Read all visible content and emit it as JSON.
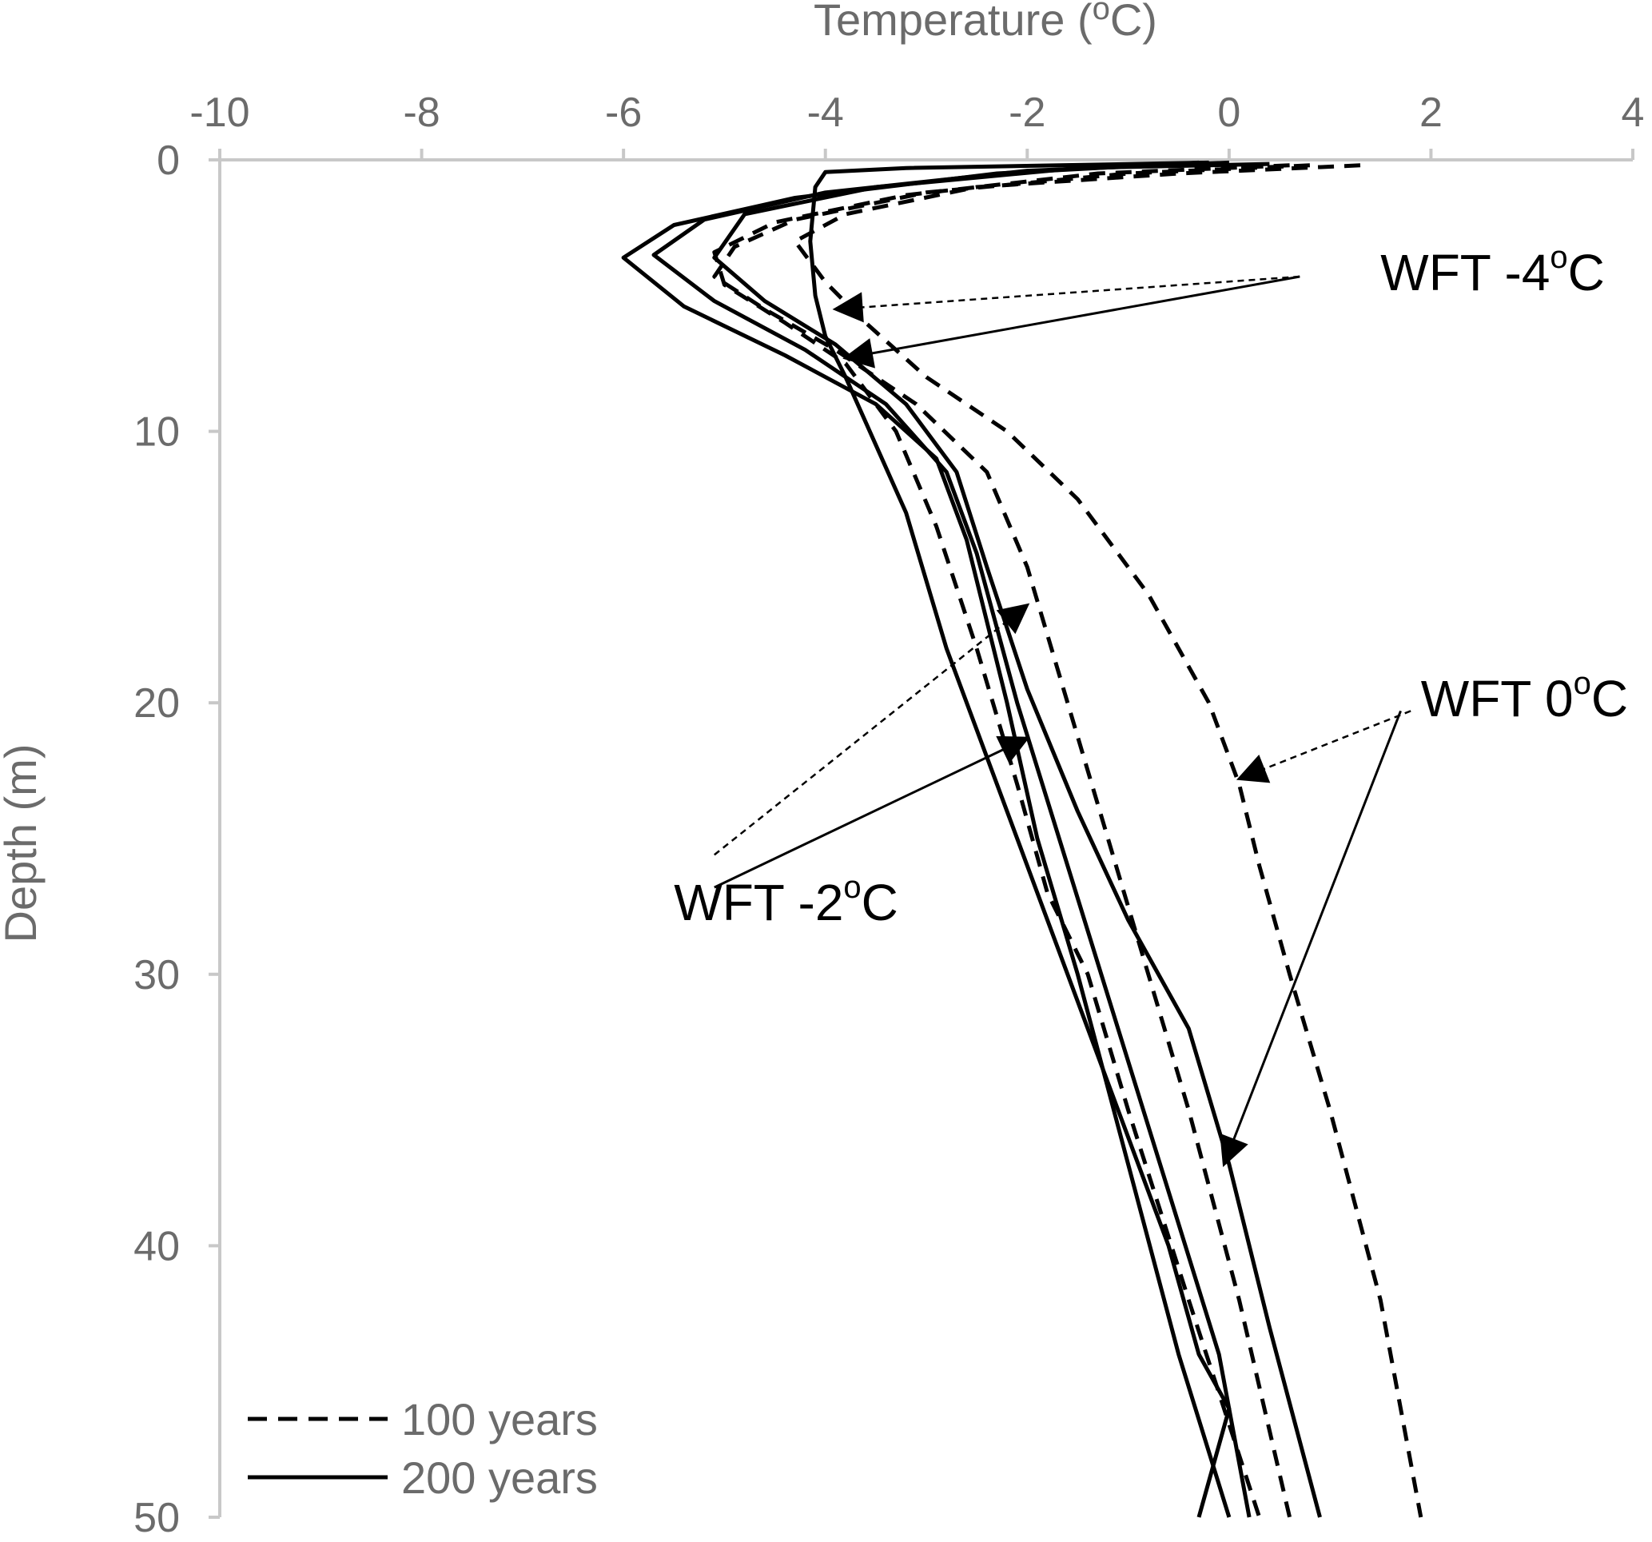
{
  "chart_data": {
    "type": "line",
    "xlabel": {
      "prefix": "Temperature (",
      "sup": "o",
      "suffix": "C)"
    },
    "ylabel": "Depth (m)",
    "xlim": [
      -10,
      4
    ],
    "ylim": [
      0,
      50
    ],
    "x_axis_position": "top",
    "y_axis_inverted": true,
    "grid": false,
    "x_ticks": [
      -10,
      -8,
      -6,
      -4,
      -2,
      0,
      2,
      4
    ],
    "y_ticks": [
      0,
      10,
      20,
      30,
      40,
      50
    ],
    "legend": {
      "placement": "bottom-left",
      "entries": [
        {
          "label": "100 years",
          "style": "dashed"
        },
        {
          "label": "200 years",
          "style": "solid"
        }
      ]
    },
    "series": [
      {
        "style": "dashed",
        "points": [
          [
            1.3,
            0.2
          ],
          [
            -0.5,
            0.5
          ],
          [
            -2.5,
            1
          ],
          [
            -3.8,
            2
          ],
          [
            -4.3,
            3
          ],
          [
            -4.0,
            4.5
          ],
          [
            -3.6,
            6
          ],
          [
            -3.0,
            8
          ],
          [
            -2.2,
            10
          ],
          [
            -1.5,
            12.5
          ],
          [
            -0.8,
            16
          ],
          [
            -0.2,
            20
          ],
          [
            0.1,
            23
          ],
          [
            0.3,
            26
          ],
          [
            0.6,
            30
          ],
          [
            1.0,
            35
          ],
          [
            1.5,
            42
          ],
          [
            1.9,
            50
          ]
        ]
      },
      {
        "style": "dashed",
        "points": [
          [
            0.8,
            0.2
          ],
          [
            -1.0,
            0.5
          ],
          [
            -3.0,
            1.2
          ],
          [
            -4.3,
            2.2
          ],
          [
            -4.9,
            3.2
          ],
          [
            -5.1,
            4.3
          ],
          [
            -4.6,
            5.5
          ],
          [
            -3.9,
            7
          ],
          [
            -3.1,
            9
          ],
          [
            -2.4,
            11.5
          ],
          [
            -2.0,
            15
          ],
          [
            -1.6,
            20
          ],
          [
            -1.2,
            25
          ],
          [
            -0.8,
            30
          ],
          [
            -0.4,
            35
          ],
          [
            0.1,
            42
          ],
          [
            0.6,
            50
          ]
        ]
      },
      {
        "style": "dashed",
        "points": [
          [
            0.6,
            0.2
          ],
          [
            -1.3,
            0.5
          ],
          [
            -3.2,
            1.3
          ],
          [
            -4.5,
            2.3
          ],
          [
            -5.1,
            3.4
          ],
          [
            -5.0,
            4.6
          ],
          [
            -4.4,
            6
          ],
          [
            -3.8,
            7.5
          ],
          [
            -3.3,
            10
          ],
          [
            -2.9,
            13.5
          ],
          [
            -2.5,
            18
          ],
          [
            -2.1,
            23
          ],
          [
            -1.8,
            27
          ],
          [
            -1.4,
            30
          ],
          [
            -1.0,
            35
          ],
          [
            -0.4,
            42
          ],
          [
            0.3,
            50
          ]
        ]
      },
      {
        "style": "solid",
        "points": [
          [
            0.4,
            0.15
          ],
          [
            -1.5,
            0.3
          ],
          [
            -3.5,
            1
          ],
          [
            -4.8,
            2
          ],
          [
            -5.1,
            3.6
          ],
          [
            -4.6,
            5.2
          ],
          [
            -3.9,
            6.8
          ],
          [
            -3.2,
            9
          ],
          [
            -2.7,
            11.5
          ],
          [
            -2.4,
            15
          ],
          [
            -2.0,
            19.5
          ],
          [
            -1.5,
            24
          ],
          [
            -1.0,
            28
          ],
          [
            -0.4,
            32
          ],
          [
            0.0,
            37
          ],
          [
            0.4,
            43
          ],
          [
            0.9,
            50
          ]
        ]
      },
      {
        "style": "solid",
        "points": [
          [
            0.0,
            0.1
          ],
          [
            -2.0,
            0.4
          ],
          [
            -4.0,
            1.2
          ],
          [
            -5.2,
            2.2
          ],
          [
            -5.7,
            3.5
          ],
          [
            -5.1,
            5.2
          ],
          [
            -4.2,
            7
          ],
          [
            -3.4,
            9
          ],
          [
            -2.8,
            11.5
          ],
          [
            -2.5,
            14.5
          ],
          [
            -2.1,
            20
          ],
          [
            -1.6,
            26
          ],
          [
            -1.1,
            32
          ],
          [
            -0.6,
            38
          ],
          [
            -0.1,
            44
          ],
          [
            0.2,
            50
          ]
        ]
      },
      {
        "style": "solid",
        "points": [
          [
            -0.3,
            0.1
          ],
          [
            -2.3,
            0.5
          ],
          [
            -4.3,
            1.4
          ],
          [
            -5.5,
            2.4
          ],
          [
            -6.0,
            3.6
          ],
          [
            -5.4,
            5.4
          ],
          [
            -4.4,
            7.2
          ],
          [
            -3.5,
            9
          ],
          [
            -2.9,
            11
          ],
          [
            -2.6,
            14
          ],
          [
            -2.2,
            20
          ],
          [
            -1.9,
            25
          ],
          [
            -1.5,
            30
          ],
          [
            -1.0,
            37
          ],
          [
            -0.5,
            44
          ],
          [
            0.0,
            50
          ]
        ]
      },
      {
        "style": "solid",
        "points": [
          [
            -0.2,
            0.1
          ],
          [
            -3.2,
            0.3
          ],
          [
            -4.0,
            0.45
          ],
          [
            -4.1,
            1
          ],
          [
            -4.15,
            3
          ],
          [
            -4.1,
            5
          ],
          [
            -4.0,
            6.5
          ],
          [
            -3.8,
            8
          ],
          [
            -3.2,
            13
          ],
          [
            -2.8,
            18
          ],
          [
            -2.4,
            22
          ],
          [
            -2.1,
            25
          ],
          [
            -1.8,
            28
          ],
          [
            -1.2,
            34
          ],
          [
            -0.6,
            40
          ],
          [
            -0.3,
            44
          ],
          [
            0.0,
            46
          ],
          [
            -0.3,
            50
          ]
        ]
      }
    ],
    "annotations": [
      {
        "label": "WFT  -4",
        "sup": "o",
        "suffix": "C",
        "label_at": [
          1.5,
          4.8
        ],
        "arrows": [
          {
            "style": "dashed",
            "from": [
              0.7,
              4.3
            ],
            "to": [
              -3.9,
              5.5
            ]
          },
          {
            "style": "solid",
            "from": [
              0.7,
              4.3
            ],
            "to": [
              -3.8,
              7.3
            ]
          }
        ]
      },
      {
        "label": "WFT  -2",
        "sup": "o",
        "suffix": "C",
        "label_at": [
          -5.5,
          28
        ],
        "arrows": [
          {
            "style": "dashed",
            "from": [
              -5.1,
              25.6
            ],
            "to": [
              -2.0,
              16.4
            ]
          },
          {
            "style": "solid",
            "from": [
              -5.1,
              26.8
            ],
            "to": [
              -2.0,
              21.3
            ]
          }
        ]
      },
      {
        "label": "WFT  0",
        "sup": "o",
        "suffix": "C",
        "label_at": [
          1.9,
          20.5
        ],
        "arrows": [
          {
            "style": "dashed",
            "from": [
              1.8,
              20.3
            ],
            "to": [
              0.1,
              22.8
            ]
          },
          {
            "style": "solid",
            "from": [
              1.7,
              20.3
            ],
            "to": [
              -0.05,
              37.0
            ]
          }
        ]
      }
    ]
  }
}
